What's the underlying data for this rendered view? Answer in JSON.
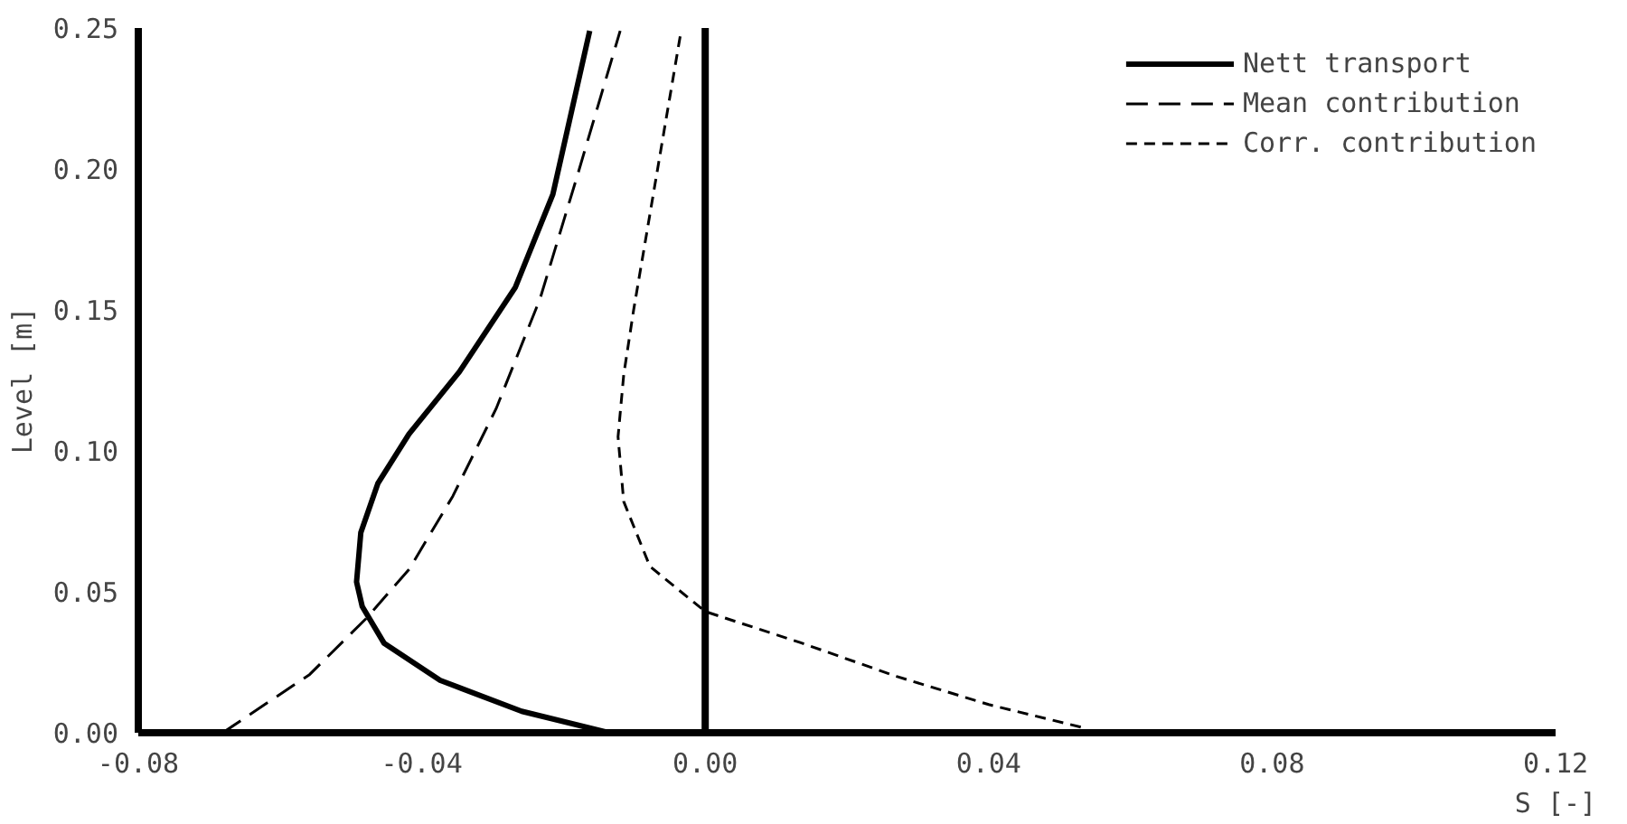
{
  "chart_data": {
    "type": "line",
    "xlabel": "S [-]",
    "ylabel": "Level [m]",
    "xlim": [
      -0.08,
      0.12
    ],
    "ylim": [
      0,
      0.25
    ],
    "xticks": [
      {
        "value": -0.08,
        "label": "-0.08"
      },
      {
        "value": -0.04,
        "label": "-0.04"
      },
      {
        "value": 0,
        "label": "0.00"
      },
      {
        "value": 0.04,
        "label": "0.04"
      },
      {
        "value": 0.08,
        "label": "0.08"
      },
      {
        "value": 0.12,
        "label": "0.12"
      }
    ],
    "yticks": [
      {
        "value": 0,
        "label": "0.00"
      },
      {
        "value": 0.05,
        "label": "0.05"
      },
      {
        "value": 0.1,
        "label": "0.10"
      },
      {
        "value": 0.15,
        "label": "0.15"
      },
      {
        "value": 0.2,
        "label": "0.20"
      },
      {
        "value": 0.25,
        "label": "0.25"
      }
    ],
    "grid": false,
    "legend": "top right",
    "ref_lines": [
      {
        "axis": "x",
        "value": 0,
        "color": "#000000",
        "line_style": "solid"
      }
    ],
    "series": [
      {
        "name": "Nett transport",
        "color": "#000000",
        "line_style": "solid",
        "x": [
          -0.0136,
          -0.0259,
          -0.0374,
          -0.0453,
          -0.0484,
          -0.0492,
          -0.0486,
          -0.0462,
          -0.0418,
          -0.0347,
          -0.0268,
          -0.0215,
          -0.0163
        ],
        "values": [
          0,
          0.0076,
          0.0186,
          0.0317,
          0.0448,
          0.0535,
          0.071,
          0.0884,
          0.106,
          0.128,
          0.158,
          0.191,
          0.249
        ]
      },
      {
        "name": "Mean contribution",
        "color": "#000000",
        "line_style": "dashed",
        "x": [
          -0.0681,
          -0.0558,
          -0.0479,
          -0.0418,
          -0.0356,
          -0.0295,
          -0.0233,
          -0.018,
          -0.012
        ],
        "values": [
          0,
          0.0207,
          0.0404,
          0.0579,
          0.084,
          0.115,
          0.154,
          0.198,
          0.249
        ]
      },
      {
        "name": "Corr. contribution",
        "color": "#000000",
        "line_style": "dotted",
        "x": [
          0.053,
          0.04,
          0.027,
          0.0134,
          0,
          -0.0078,
          -0.0115,
          -0.0123,
          -0.0115,
          -0.0101,
          -0.0078,
          -0.0055,
          -0.0034
        ],
        "values": [
          0.002,
          0.01,
          0.02,
          0.032,
          0.043,
          0.059,
          0.082,
          0.105,
          0.127,
          0.15,
          0.184,
          0.218,
          0.249
        ]
      }
    ]
  }
}
